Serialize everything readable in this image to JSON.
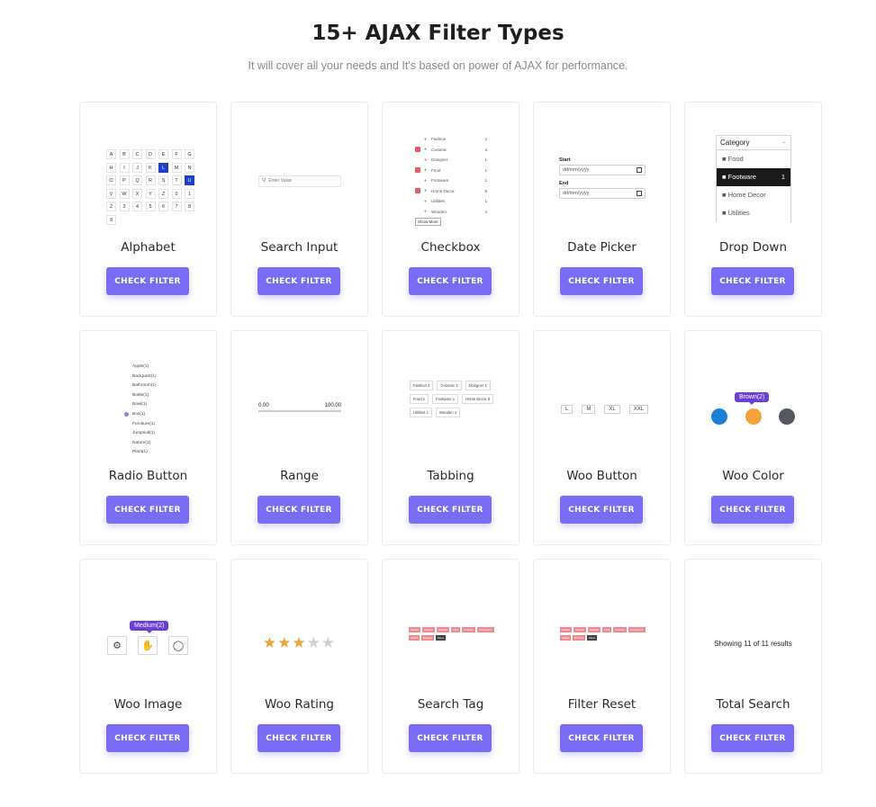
{
  "header": {
    "title": "15+ AJAX Filter Types",
    "subtitle": "It will cover all your needs and It's based on power of AJAX for performance."
  },
  "button_label": "CHECK FILTER",
  "cards": [
    {
      "title": "Alphabet"
    },
    {
      "title": "Search Input"
    },
    {
      "title": "Checkbox"
    },
    {
      "title": "Date Picker"
    },
    {
      "title": "Drop Down"
    },
    {
      "title": "Radio Button"
    },
    {
      "title": "Range"
    },
    {
      "title": "Tabbing"
    },
    {
      "title": "Woo Button"
    },
    {
      "title": "Woo Color"
    },
    {
      "title": "Woo Image"
    },
    {
      "title": "Woo Rating"
    },
    {
      "title": "Search Tag"
    },
    {
      "title": "Filter Reset"
    },
    {
      "title": "Total Search"
    }
  ],
  "alphabet": {
    "letters": [
      "A",
      "B",
      "C",
      "D",
      "E",
      "F",
      "G",
      "H",
      "I",
      "J",
      "K",
      "L",
      "M",
      "N",
      "O",
      "P",
      "Q",
      "R",
      "S",
      "T",
      "U",
      "V",
      "W",
      "X",
      "Y",
      "Z",
      "0",
      "1",
      "2",
      "3",
      "4",
      "5",
      "6",
      "7",
      "8",
      "9"
    ],
    "active": [
      "L",
      "U"
    ]
  },
  "search_input": {
    "placeholder": "Enter Value"
  },
  "checkbox": {
    "items": [
      {
        "label": "Fashion",
        "count": "2",
        "checked": false
      },
      {
        "label": "Ceramic",
        "count": "3",
        "checked": true
      },
      {
        "label": "Designer",
        "count": "1",
        "checked": false
      },
      {
        "label": "Food",
        "count": "1",
        "checked": true
      },
      {
        "label": "Footware",
        "count": "1",
        "checked": false
      },
      {
        "label": "Home Decor",
        "count": "8",
        "checked": true
      },
      {
        "label": "Utilities",
        "count": "1",
        "checked": false
      },
      {
        "label": "Wooden",
        "count": "4",
        "checked": false
      }
    ],
    "show_more": "Show More"
  },
  "date_picker": {
    "start_label": "Start",
    "end_label": "End",
    "placeholder": "dd/mm/yyyy"
  },
  "dropdown": {
    "header": "Category",
    "items": [
      {
        "label": "Food",
        "count": "",
        "selected": false
      },
      {
        "label": "Footware",
        "count": "1",
        "selected": true
      },
      {
        "label": "Home Decor",
        "count": "",
        "selected": false
      },
      {
        "label": "Utilities",
        "count": "",
        "selected": false
      }
    ]
  },
  "radio": {
    "items": [
      "Apple(1)",
      "Backpack(1)",
      "Bathroom(1)",
      "Bottle(1)",
      "Bowl(1)",
      "Box(1)",
      "Furniture(1)",
      "Jumpsuit(1)",
      "Nature(2)",
      "Plant(1)"
    ],
    "selected_index": 5
  },
  "range": {
    "min": "0.00",
    "max": "100.00"
  },
  "tabbing": {
    "items": [
      {
        "label": "Fashion",
        "count": "2"
      },
      {
        "label": "Ceramic",
        "count": "3"
      },
      {
        "label": "Designer",
        "count": "1"
      },
      {
        "label": "Food",
        "count": "1"
      },
      {
        "label": "Footware",
        "count": "1"
      },
      {
        "label": "Home Decor",
        "count": "8"
      },
      {
        "label": "Utilities",
        "count": "1"
      },
      {
        "label": "Wooden",
        "count": "4"
      }
    ]
  },
  "woo_button": {
    "sizes": [
      "L",
      "M",
      "XL",
      "XXL"
    ]
  },
  "woo_color": {
    "colors": [
      "#1b7fd6",
      "#f3a23d",
      "#55595e"
    ],
    "tooltip": "Brown(2)"
  },
  "woo_image": {
    "tooltip": "Medium(2)"
  },
  "woo_rating": {
    "rating": 3,
    "max": 5
  },
  "search_tag": {
    "tags": [
      "Fashion",
      "Ceramic",
      "Designer",
      "Food",
      "Footware",
      "Home Decor",
      "Utilities",
      "Wooden"
    ],
    "dark_tag": "Reset"
  },
  "filter_reset": {
    "tags": [
      "Fashion",
      "Ceramic",
      "Designer",
      "Food",
      "Footware",
      "Home Decor",
      "Utilities",
      "Wooden"
    ],
    "dark_tag": "Reset"
  },
  "total_search": {
    "text": "Showing 11 of 11 results"
  }
}
